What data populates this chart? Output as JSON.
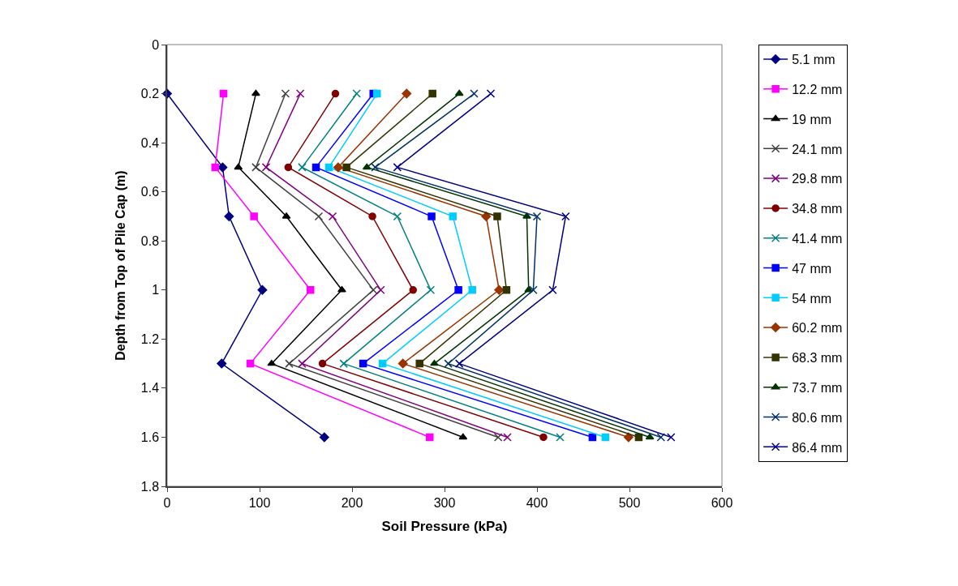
{
  "chart_data": {
    "type": "line",
    "xlabel": "Soil Pressure (kPa)",
    "ylabel": "Depth from Top of Pile Cap (m)",
    "xlim": [
      0,
      600
    ],
    "xticks": [
      0,
      100,
      200,
      300,
      400,
      500,
      600
    ],
    "ylim": [
      1.8,
      0
    ],
    "yticks": [
      0,
      0.2,
      0.4,
      0.6,
      0.8,
      1,
      1.2,
      1.4,
      1.6,
      1.8
    ],
    "grid": false,
    "legend": "right",
    "line_style": "solid",
    "series": [
      {
        "name": "5.1 mm",
        "color": "#000080",
        "marker": "diamond",
        "x": [
          0,
          60,
          67,
          103,
          59,
          170
        ],
        "values": [
          0.2,
          0.5,
          0.7,
          1.0,
          1.3,
          1.6
        ]
      },
      {
        "name": "12.2 mm",
        "color": "#ff00ff",
        "marker": "square",
        "x": [
          61,
          52,
          94,
          155,
          90,
          284
        ],
        "values": [
          0.2,
          0.5,
          0.7,
          1.0,
          1.3,
          1.6
        ]
      },
      {
        "name": "19 mm",
        "color": "#000000",
        "marker": "triangle",
        "x": [
          96,
          77,
          129,
          189,
          113,
          320
        ],
        "values": [
          0.2,
          0.5,
          0.7,
          1.0,
          1.3,
          1.6
        ]
      },
      {
        "name": "24.1 mm",
        "color": "#404040",
        "marker": "cross",
        "x": [
          128,
          96,
          164,
          223,
          132,
          358
        ],
        "values": [
          0.2,
          0.5,
          0.7,
          1.0,
          1.3,
          1.6
        ]
      },
      {
        "name": "29.8 mm",
        "color": "#800080",
        "marker": "cross",
        "x": [
          144,
          107,
          179,
          231,
          146,
          368
        ],
        "values": [
          0.2,
          0.5,
          0.7,
          1.0,
          1.3,
          1.6
        ]
      },
      {
        "name": "34.8 mm",
        "color": "#800000",
        "marker": "circle",
        "x": [
          182,
          131,
          222,
          266,
          168,
          407
        ],
        "values": [
          0.2,
          0.5,
          0.7,
          1.0,
          1.3,
          1.6
        ]
      },
      {
        "name": "41.4 mm",
        "color": "#008080",
        "marker": "cross",
        "x": [
          205,
          146,
          249,
          285,
          191,
          425
        ],
        "values": [
          0.2,
          0.5,
          0.7,
          1.0,
          1.3,
          1.6
        ]
      },
      {
        "name": "47 mm",
        "color": "#0000ff",
        "marker": "square",
        "x": [
          223,
          161,
          286,
          315,
          212,
          460
        ],
        "values": [
          0.2,
          0.5,
          0.7,
          1.0,
          1.3,
          1.6
        ]
      },
      {
        "name": "54 mm",
        "color": "#00ccff",
        "marker": "square",
        "x": [
          227,
          175,
          309,
          330,
          233,
          474
        ],
        "values": [
          0.2,
          0.5,
          0.7,
          1.0,
          1.3,
          1.6
        ]
      },
      {
        "name": "60.2 mm",
        "color": "#993300",
        "marker": "diamond",
        "x": [
          259,
          185,
          345,
          359,
          255,
          499
        ],
        "values": [
          0.2,
          0.5,
          0.7,
          1.0,
          1.3,
          1.6
        ]
      },
      {
        "name": "68.3 mm",
        "color": "#333300",
        "marker": "square",
        "x": [
          287,
          194,
          357,
          367,
          273,
          510
        ],
        "values": [
          0.2,
          0.5,
          0.7,
          1.0,
          1.3,
          1.6
        ]
      },
      {
        "name": "73.7 mm",
        "color": "#003300",
        "marker": "triangle",
        "x": [
          316,
          216,
          389,
          391,
          289,
          522
        ],
        "values": [
          0.2,
          0.5,
          0.7,
          1.0,
          1.3,
          1.6
        ]
      },
      {
        "name": "80.6 mm",
        "color": "#003366",
        "marker": "cross",
        "x": [
          332,
          225,
          400,
          396,
          304,
          534
        ],
        "values": [
          0.2,
          0.5,
          0.7,
          1.0,
          1.3,
          1.6
        ]
      },
      {
        "name": "86.4 mm",
        "color": "#000080",
        "marker": "cross",
        "x": [
          350,
          249,
          431,
          417,
          316,
          545
        ],
        "values": [
          0.2,
          0.5,
          0.7,
          1.0,
          1.3,
          1.6
        ]
      }
    ]
  }
}
